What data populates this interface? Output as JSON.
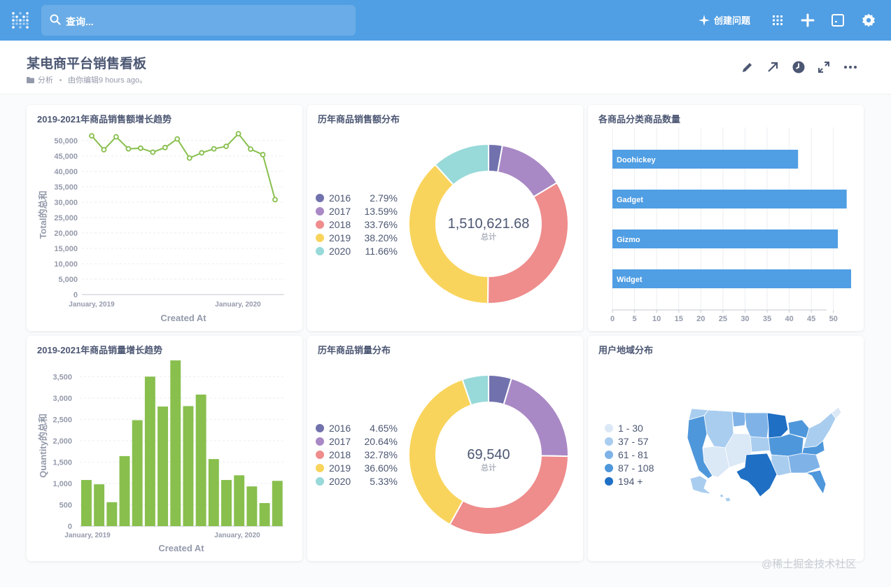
{
  "nav": {
    "search_placeholder": "查询...",
    "new_question_label": "创建问题",
    "icons": [
      "apps-grid-icon",
      "plus-icon",
      "console-icon",
      "gear-icon"
    ]
  },
  "dashboard": {
    "title": "某电商平台销售看板",
    "collection": "分析",
    "edited": "由你编辑9 hours ago。"
  },
  "colors": {
    "accent": "#509ee3",
    "line_green": "#88bf4d",
    "bar_blue": "#509ee3",
    "pie": [
      "#7172ad",
      "#a989c5",
      "#ef8c8c",
      "#f9d45c",
      "#98d9d9"
    ]
  },
  "cards": {
    "sales_trend": {
      "title": "2019-2021年商品销售额增长趋势",
      "chart_data": {
        "type": "line",
        "title": "2019-2021年商品销售额增长趋势",
        "xlabel": "Created At",
        "ylabel": "Total的总和",
        "x_tick_labels": [
          "January, 2019",
          "January, 2020"
        ],
        "y_ticks": [
          "0",
          "5,000",
          "10,000",
          "15,000",
          "20,000",
          "25,000",
          "30,000",
          "35,000",
          "40,000",
          "45,000",
          "50,000"
        ],
        "ylim": [
          0,
          52000
        ],
        "values": [
          51500,
          47000,
          51200,
          47300,
          47500,
          46200,
          47700,
          50500,
          44300,
          46000,
          47300,
          48100,
          52200,
          47200,
          45400,
          30800
        ]
      }
    },
    "sales_pie": {
      "title": "历年商品销售额分布",
      "total": "1,510,621.68",
      "total_label": "总计",
      "chart_data": {
        "type": "pie",
        "title": "历年商品销售额分布",
        "labels": [
          "2016",
          "2017",
          "2018",
          "2019",
          "2020"
        ],
        "percents": [
          "2.79%",
          "13.59%",
          "33.76%",
          "38.20%",
          "11.66%"
        ],
        "values": [
          2.79,
          13.59,
          33.76,
          38.2,
          11.66
        ]
      }
    },
    "category_count": {
      "title": "各商品分类商品数量",
      "chart_data": {
        "type": "bar",
        "title": "各商品分类商品数量",
        "categories": [
          "Doohickey",
          "Gadget",
          "Gizmo",
          "Widget"
        ],
        "values": [
          42,
          53,
          51,
          54
        ],
        "x_ticks": [
          "0",
          "5",
          "10",
          "15",
          "20",
          "25",
          "30",
          "35",
          "40",
          "45",
          "50"
        ],
        "xlim": [
          0,
          54
        ]
      }
    },
    "quantity_trend": {
      "title": "2019-2021年商品销量增长趋势",
      "chart_data": {
        "type": "bar",
        "title": "2019-2021年商品销量增长趋势",
        "xlabel": "Created At",
        "ylabel": "Quantity的总和",
        "x_tick_labels": [
          "January, 2019",
          "January, 2020"
        ],
        "y_ticks": [
          "0",
          "500",
          "1,000",
          "1,500",
          "2,000",
          "2,500",
          "3,000",
          "3,500"
        ],
        "ylim": [
          0,
          3800
        ],
        "values": [
          1080,
          980,
          560,
          1640,
          2480,
          3500,
          2800,
          3880,
          2810,
          3080,
          1570,
          1080,
          1190,
          930,
          540,
          1060
        ]
      }
    },
    "quantity_pie": {
      "title": "历年商品销量分布",
      "total": "69,540",
      "total_label": "总计",
      "chart_data": {
        "type": "pie",
        "title": "历年商品销量分布",
        "labels": [
          "2016",
          "2017",
          "2018",
          "2019",
          "2020"
        ],
        "percents": [
          "4.65%",
          "20.64%",
          "32.78%",
          "36.60%",
          "5.33%"
        ],
        "values": [
          4.65,
          20.64,
          32.78,
          36.6,
          5.33
        ]
      }
    },
    "user_region": {
      "title": "用户地域分布",
      "legend": [
        {
          "label": "1 - 30",
          "color": "#dbe8f6"
        },
        {
          "label": "37 - 57",
          "color": "#a9cdef"
        },
        {
          "label": "61 - 81",
          "color": "#7fb3e8"
        },
        {
          "label": "87 - 108",
          "color": "#4f97db"
        },
        {
          "label": "194 +",
          "color": "#1f6fc4"
        }
      ]
    }
  },
  "watermark": "@稀土掘金技术社区"
}
